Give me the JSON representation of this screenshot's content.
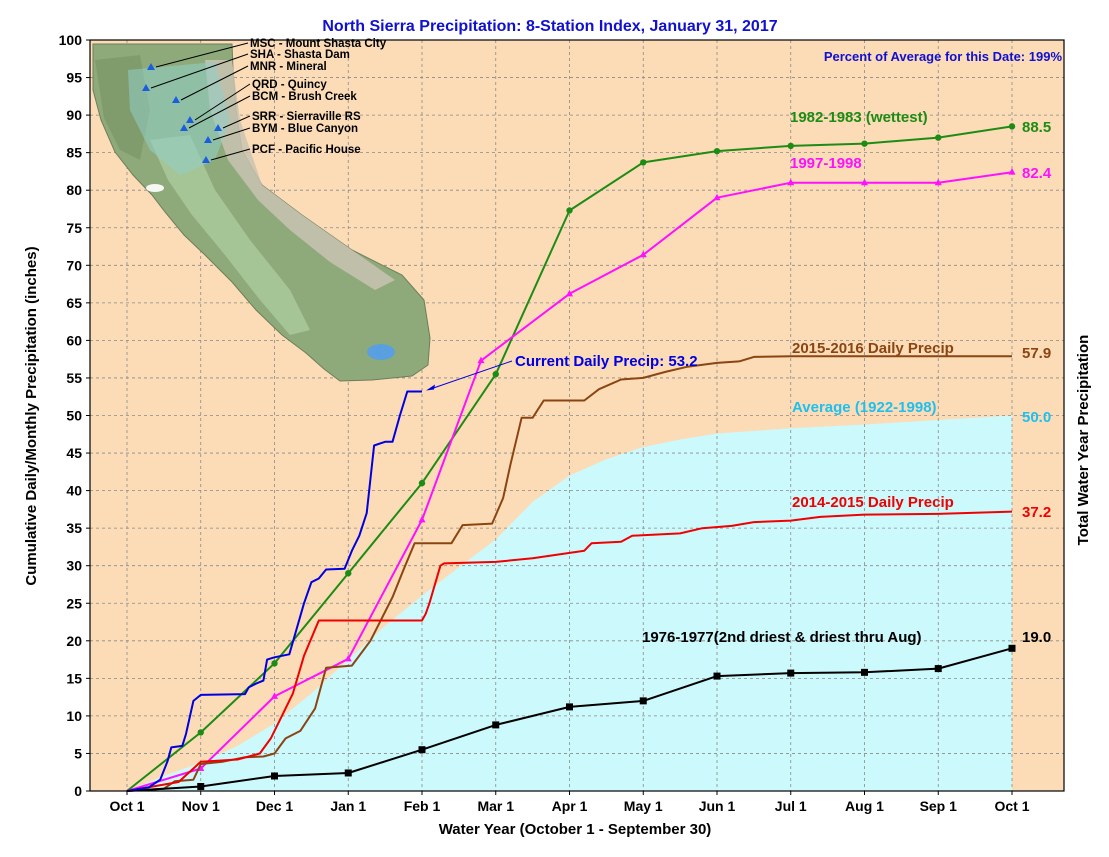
{
  "chart_data": {
    "type": "line",
    "title": "North Sierra Precipitation: 8-Station Index, January 31, 2017",
    "percent_note": "Percent of Average for this Date: 199%",
    "xlabel": "Water Year (October 1 - September 30)",
    "ylabel": "Cumulative Daily/Monthly Precipitation (inches)",
    "ylabel_right": "Total Water Year Precipitation",
    "ylim": [
      0,
      100
    ],
    "yticks": [
      0,
      5,
      10,
      15,
      20,
      25,
      30,
      35,
      40,
      45,
      50,
      55,
      60,
      65,
      70,
      75,
      80,
      85,
      90,
      95,
      100
    ],
    "xlim": [
      0,
      12
    ],
    "xticks": [
      {
        "x": 0,
        "label": "Oct 1"
      },
      {
        "x": 1,
        "label": "Nov 1"
      },
      {
        "x": 2,
        "label": "Dec 1"
      },
      {
        "x": 3,
        "label": "Jan 1"
      },
      {
        "x": 4,
        "label": "Feb 1"
      },
      {
        "x": 5,
        "label": "Mar 1"
      },
      {
        "x": 6,
        "label": "Apr 1"
      },
      {
        "x": 7,
        "label": "May 1"
      },
      {
        "x": 8,
        "label": "Jun 1"
      },
      {
        "x": 9,
        "label": "Jul 1"
      },
      {
        "x": 10,
        "label": "Aug 1"
      },
      {
        "x": 11,
        "label": "Sep 1"
      },
      {
        "x": 12,
        "label": "Oct 1"
      }
    ],
    "grid": true,
    "colors": {
      "plot_bg": "#fbdcb6",
      "average_fill": "#ccf9fc",
      "wettest": "#1e8c14",
      "y9798": "#ff10ff",
      "y1516": "#8b4513",
      "y1415": "#f00000",
      "driest": "#000000",
      "current": "#0000e0",
      "average_label": "#1ec0f0",
      "title": "#1010d0"
    },
    "average": {
      "name": "Average (1922-1998)",
      "final_label": "50.0",
      "points": [
        [
          0,
          0
        ],
        [
          0.5,
          2.0
        ],
        [
          1,
          3.8
        ],
        [
          1.5,
          6.0
        ],
        [
          2,
          9.0
        ],
        [
          2.5,
          13.0
        ],
        [
          3,
          17.5
        ],
        [
          3.5,
          22.0
        ],
        [
          4,
          26.0
        ],
        [
          4.5,
          29.8
        ],
        [
          5,
          33.5
        ],
        [
          5.5,
          38.5
        ],
        [
          6,
          42.0
        ],
        [
          6.5,
          44.2
        ],
        [
          7,
          45.8
        ],
        [
          7.5,
          46.8
        ],
        [
          8,
          47.6
        ],
        [
          9,
          48.3
        ],
        [
          10,
          48.8
        ],
        [
          11,
          49.4
        ],
        [
          12,
          50.0
        ]
      ]
    },
    "series": [
      {
        "key": "wettest",
        "name": "1982-1983 (wettest)",
        "final_label": "88.5",
        "marker": "circle",
        "points": [
          [
            0,
            0
          ],
          [
            1,
            7.8
          ],
          [
            2,
            17.0
          ],
          [
            3,
            29.0
          ],
          [
            4,
            41.0
          ],
          [
            5,
            55.5
          ],
          [
            6,
            77.3
          ],
          [
            7,
            83.7
          ],
          [
            8,
            85.2
          ],
          [
            9,
            85.9
          ],
          [
            10,
            86.2
          ],
          [
            11,
            87.0
          ],
          [
            12,
            88.5
          ]
        ]
      },
      {
        "key": "y9798",
        "name": "1997-1998",
        "final_label": "82.4",
        "marker": "triangle",
        "points": [
          [
            0,
            0
          ],
          [
            1,
            3.0
          ],
          [
            2,
            12.6
          ],
          [
            3,
            17.6
          ],
          [
            4,
            36.1
          ],
          [
            4.8,
            57.3
          ],
          [
            6,
            66.2
          ],
          [
            7,
            71.4
          ],
          [
            8,
            79.0
          ],
          [
            9,
            81.0
          ],
          [
            10,
            81.0
          ],
          [
            11,
            81.0
          ],
          [
            12,
            82.4
          ]
        ]
      },
      {
        "key": "y1516",
        "name": "2015-2016 Daily Precip",
        "final_label": "57.9",
        "marker": "none",
        "points": [
          [
            0,
            0
          ],
          [
            0.5,
            0.3
          ],
          [
            0.65,
            1.3
          ],
          [
            0.9,
            1.5
          ],
          [
            1,
            3.6
          ],
          [
            1.3,
            3.9
          ],
          [
            1.6,
            4.5
          ],
          [
            1.85,
            4.6
          ],
          [
            2,
            5.0
          ],
          [
            2.15,
            7.0
          ],
          [
            2.35,
            8.0
          ],
          [
            2.55,
            11.0
          ],
          [
            2.7,
            16.4
          ],
          [
            3.05,
            16.7
          ],
          [
            3.3,
            20.0
          ],
          [
            3.6,
            25.8
          ],
          [
            3.75,
            29.5
          ],
          [
            3.9,
            33.0
          ],
          [
            4.4,
            33.0
          ],
          [
            4.55,
            35.4
          ],
          [
            4.95,
            35.6
          ],
          [
            5.1,
            39.0
          ],
          [
            5.2,
            43.5
          ],
          [
            5.35,
            49.7
          ],
          [
            5.5,
            49.7
          ],
          [
            5.65,
            52.0
          ],
          [
            6.2,
            52.0
          ],
          [
            6.4,
            53.5
          ],
          [
            6.7,
            54.8
          ],
          [
            7.0,
            55.0
          ],
          [
            7.3,
            55.8
          ],
          [
            7.6,
            56.5
          ],
          [
            8.0,
            57.0
          ],
          [
            8.3,
            57.2
          ],
          [
            8.5,
            57.8
          ],
          [
            9,
            57.9
          ],
          [
            12,
            57.9
          ]
        ]
      },
      {
        "key": "y1415",
        "name": "2014-2015 Daily Precip",
        "final_label": "37.2",
        "marker": "none",
        "points": [
          [
            0,
            0
          ],
          [
            0.7,
            1.2
          ],
          [
            1,
            3.9
          ],
          [
            1.5,
            4.2
          ],
          [
            1.8,
            5.0
          ],
          [
            1.95,
            7.0
          ],
          [
            2.1,
            10.0
          ],
          [
            2.25,
            13.0
          ],
          [
            2.4,
            18.0
          ],
          [
            2.6,
            22.7
          ],
          [
            4,
            22.7
          ],
          [
            4.05,
            23.6
          ],
          [
            4.1,
            25.0
          ],
          [
            4.25,
            30.0
          ],
          [
            4.3,
            30.3
          ],
          [
            5,
            30.5
          ],
          [
            5.5,
            31.0
          ],
          [
            6.2,
            32.0
          ],
          [
            6.3,
            33.0
          ],
          [
            6.7,
            33.2
          ],
          [
            6.85,
            34.0
          ],
          [
            7.5,
            34.3
          ],
          [
            7.8,
            35.0
          ],
          [
            8.2,
            35.3
          ],
          [
            8.5,
            35.8
          ],
          [
            9,
            36.0
          ],
          [
            9.4,
            36.5
          ],
          [
            10,
            36.8
          ],
          [
            11,
            36.9
          ],
          [
            12,
            37.2
          ]
        ]
      },
      {
        "key": "driest",
        "name": "1976-1977(2nd driest & driest thru Aug)",
        "final_label": "19.0",
        "marker": "square",
        "points": [
          [
            0,
            0
          ],
          [
            1,
            0.6
          ],
          [
            2,
            2.0
          ],
          [
            3,
            2.4
          ],
          [
            4,
            5.5
          ],
          [
            5,
            8.8
          ],
          [
            6,
            11.2
          ],
          [
            7,
            12.0
          ],
          [
            8,
            15.3
          ],
          [
            9,
            15.7
          ],
          [
            10,
            15.8
          ],
          [
            11,
            16.3
          ],
          [
            12,
            19.0
          ]
        ]
      },
      {
        "key": "current",
        "name": "Current Daily Precip: 53.2",
        "final_label": "",
        "marker": "none",
        "points": [
          [
            0,
            0
          ],
          [
            0.3,
            0.5
          ],
          [
            0.45,
            1.5
          ],
          [
            0.55,
            4.0
          ],
          [
            0.6,
            5.8
          ],
          [
            0.75,
            6.0
          ],
          [
            0.8,
            7.6
          ],
          [
            0.9,
            12.0
          ],
          [
            1,
            12.8
          ],
          [
            1.6,
            12.9
          ],
          [
            1.65,
            13.8
          ],
          [
            1.75,
            14.3
          ],
          [
            1.85,
            14.7
          ],
          [
            1.9,
            17.5
          ],
          [
            2.0,
            17.8
          ],
          [
            2.2,
            18.2
          ],
          [
            2.4,
            25.0
          ],
          [
            2.5,
            27.8
          ],
          [
            2.6,
            28.3
          ],
          [
            2.7,
            29.5
          ],
          [
            2.95,
            29.6
          ],
          [
            3.05,
            32.0
          ],
          [
            3.15,
            34.0
          ],
          [
            3.25,
            37.0
          ],
          [
            3.35,
            46.0
          ],
          [
            3.5,
            46.5
          ],
          [
            3.6,
            46.5
          ],
          [
            3.7,
            50.0
          ],
          [
            3.8,
            53.2
          ],
          [
            4.0,
            53.2
          ]
        ]
      }
    ],
    "map": {
      "stations": [
        "MSC - Mount Shasta City",
        "SHA - Shasta Dam",
        "MNR - Mineral",
        "QRD - Quincy",
        "BCM - Brush Creek",
        "SRR - Sierraville RS",
        "BYM - Blue Canyon",
        "PCF - Pacific House"
      ]
    }
  }
}
